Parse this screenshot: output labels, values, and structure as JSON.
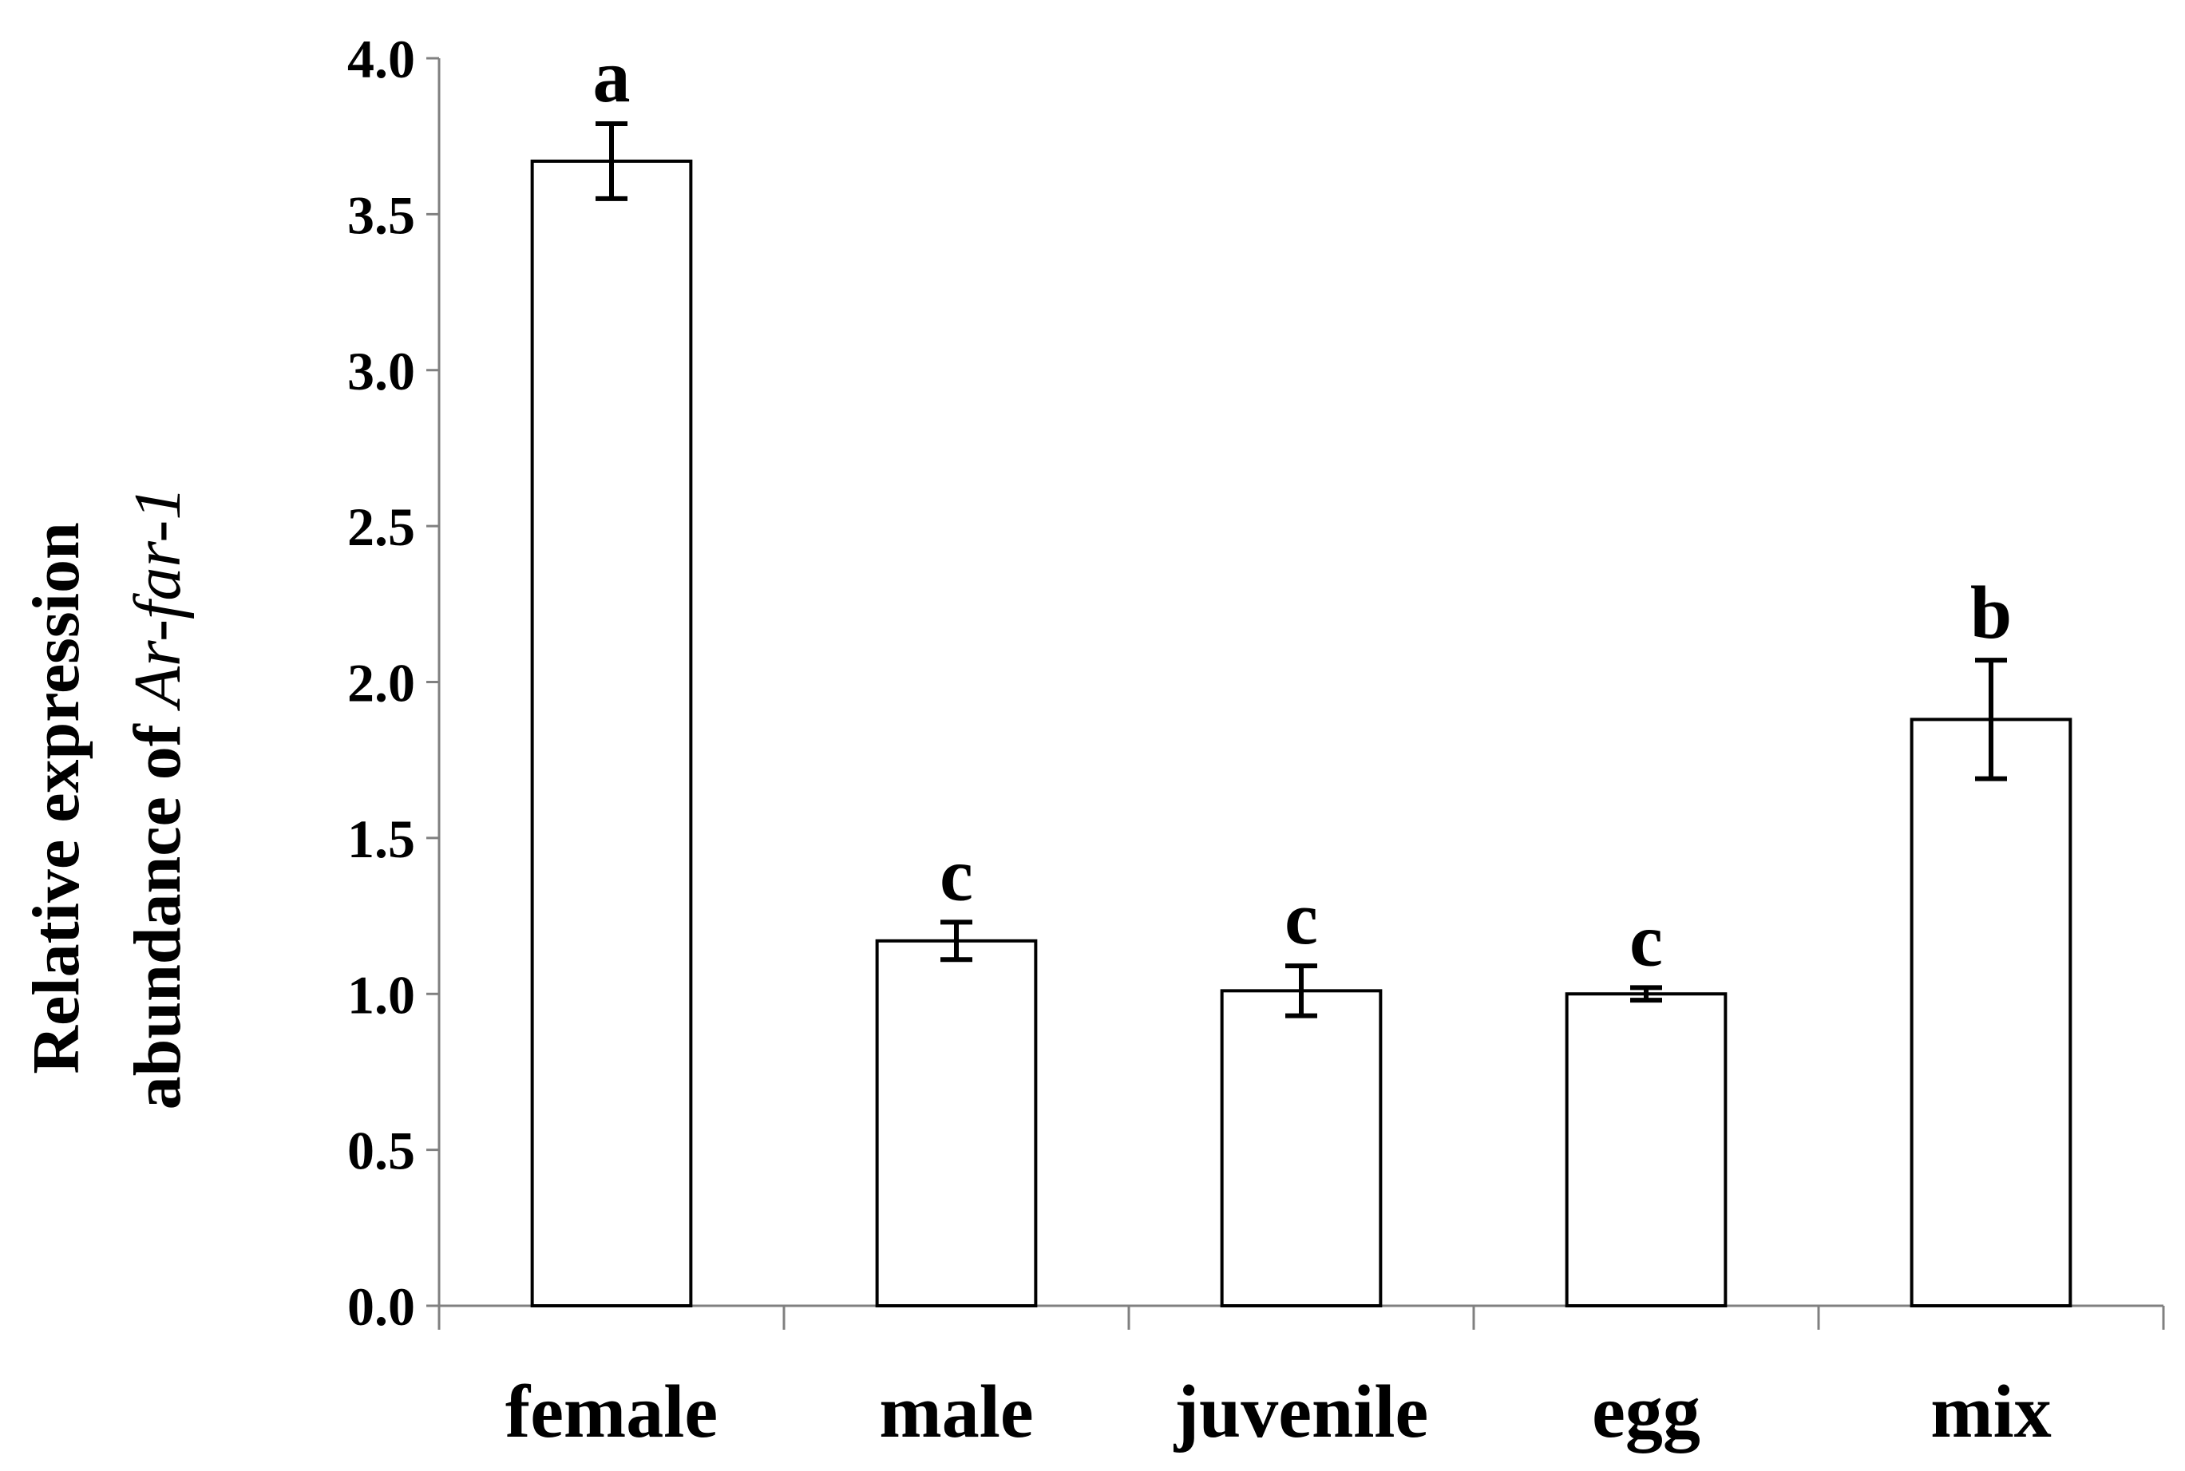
{
  "chart_data": {
    "type": "bar",
    "title": "",
    "xlabel": "",
    "ylabel_prefix": "Relative expression",
    "ylabel_line2": "abundance of ",
    "ylabel_gene": "Ar-far-1",
    "categories": [
      "female",
      "male",
      "juvenile",
      "egg",
      "mix"
    ],
    "values": [
      3.67,
      1.17,
      1.01,
      1.0,
      1.88
    ],
    "errors": [
      0.12,
      0.06,
      0.08,
      0.02,
      0.19
    ],
    "significance": [
      "a",
      "c",
      "c",
      "c",
      "b"
    ],
    "ylim": [
      0,
      4.0
    ],
    "yticks": [
      "0.0",
      "0.5",
      "1.0",
      "1.5",
      "2.0",
      "2.5",
      "3.0",
      "3.5",
      "4.0"
    ],
    "grid": false,
    "legend": "none"
  }
}
